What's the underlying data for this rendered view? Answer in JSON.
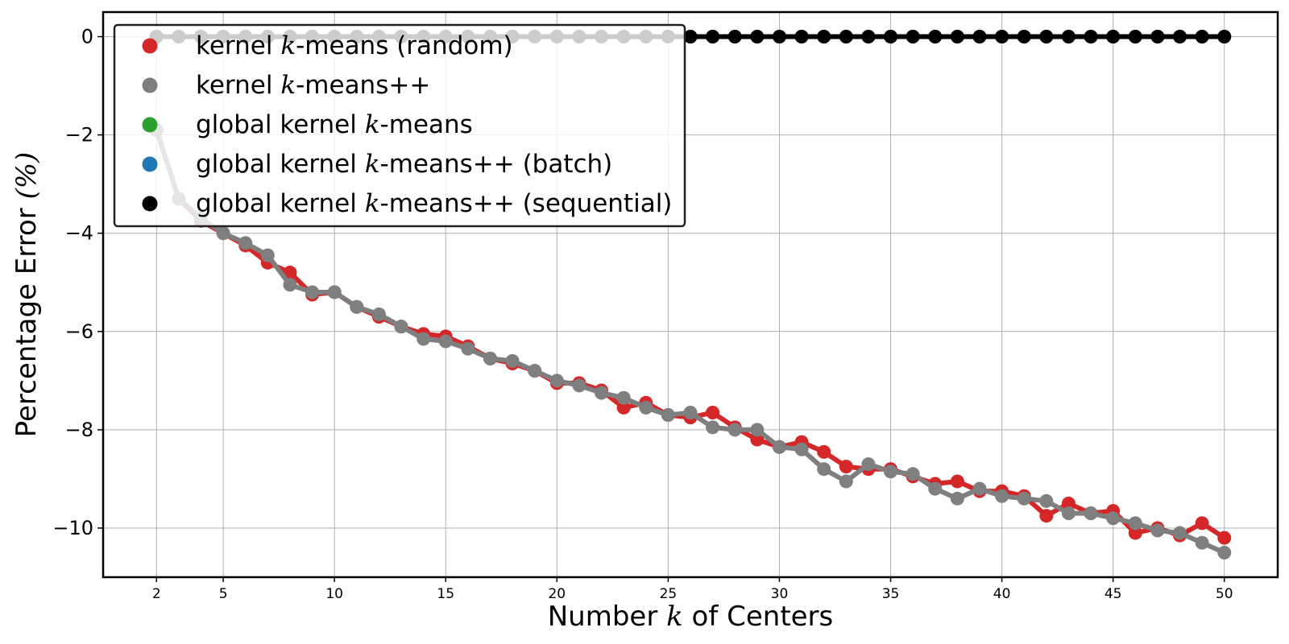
{
  "chart_data": {
    "type": "line",
    "title": "",
    "xlabel": {
      "pre": "Number ",
      "var": "k",
      "post": " of Centers"
    },
    "ylabel": {
      "pre": "Percentage Error ",
      "var": "(%)"
    },
    "xlim": [
      -0.4,
      52.4
    ],
    "ylim": [
      -11.0,
      0.5
    ],
    "xticks": [
      2,
      5,
      10,
      15,
      20,
      25,
      30,
      35,
      40,
      45,
      50
    ],
    "yticks": [
      0,
      -2,
      -4,
      -6,
      -8,
      -10
    ],
    "ytick_labels": [
      "0",
      "−2",
      "−4",
      "−6",
      "−8",
      "−10"
    ],
    "grid": true,
    "legend_position": "top-left",
    "x": [
      2,
      3,
      4,
      5,
      6,
      7,
      8,
      9,
      10,
      11,
      12,
      13,
      14,
      15,
      16,
      17,
      18,
      19,
      20,
      21,
      22,
      23,
      24,
      25,
      26,
      27,
      28,
      29,
      30,
      31,
      32,
      33,
      34,
      35,
      36,
      37,
      38,
      39,
      40,
      41,
      42,
      43,
      44,
      45,
      46,
      47,
      48,
      49,
      50
    ],
    "series": [
      {
        "name": "kernel k-means (random)",
        "legend": {
          "pre": "kernel ",
          "var": "k",
          "post": "-means (random)"
        },
        "color": "#d62728",
        "values": [
          -1.9,
          -3.3,
          -3.75,
          -4.0,
          -4.25,
          -4.6,
          -4.8,
          -5.25,
          -5.2,
          -5.5,
          -5.7,
          -5.9,
          -6.05,
          -6.1,
          -6.3,
          -6.55,
          -6.65,
          -6.8,
          -7.05,
          -7.05,
          -7.2,
          -7.55,
          -7.45,
          -7.7,
          -7.75,
          -7.65,
          -7.95,
          -8.2,
          -8.35,
          -8.25,
          -8.45,
          -8.75,
          -8.8,
          -8.8,
          -8.95,
          -9.1,
          -9.05,
          -9.25,
          -9.25,
          -9.35,
          -9.75,
          -9.5,
          -9.7,
          -9.65,
          -10.1,
          -10.0,
          -10.15,
          -9.9,
          -10.2
        ]
      },
      {
        "name": "kernel k-means++",
        "legend": {
          "pre": "kernel ",
          "var": "k",
          "post": "-means++"
        },
        "color": "#7f7f7f",
        "values": [
          -1.9,
          -3.3,
          -3.7,
          -4.0,
          -4.2,
          -4.45,
          -5.05,
          -5.2,
          -5.2,
          -5.5,
          -5.65,
          -5.9,
          -6.15,
          -6.2,
          -6.35,
          -6.55,
          -6.6,
          -6.8,
          -7.0,
          -7.1,
          -7.25,
          -7.35,
          -7.55,
          -7.7,
          -7.65,
          -7.95,
          -8.0,
          -8.0,
          -8.35,
          -8.4,
          -8.8,
          -9.05,
          -8.7,
          -8.85,
          -8.9,
          -9.2,
          -9.4,
          -9.2,
          -9.35,
          -9.4,
          -9.45,
          -9.7,
          -9.7,
          -9.8,
          -9.9,
          -10.05,
          -10.1,
          -10.3,
          -10.5
        ]
      },
      {
        "name": "global kernel k-means",
        "legend": {
          "pre": "global kernel ",
          "var": "k",
          "post": "-means"
        },
        "color": "#2ca02c",
        "values": [
          0,
          0,
          0,
          0,
          0,
          0,
          0,
          0,
          0,
          0,
          0,
          0,
          0,
          0,
          0,
          0,
          0,
          0,
          0,
          0,
          0,
          0,
          0,
          0,
          0,
          0,
          0,
          0,
          0,
          0,
          0,
          0,
          0,
          0,
          0,
          0,
          0,
          0,
          0,
          0,
          0,
          0,
          0,
          0,
          0,
          0,
          0,
          0,
          0
        ]
      },
      {
        "name": "global kernel k-means++ (batch)",
        "legend": {
          "pre": "global kernel ",
          "var": "k",
          "post": "-means++ (batch)"
        },
        "color": "#1f77b4",
        "values": [
          0,
          0,
          0,
          0,
          0,
          0,
          0,
          0,
          0,
          0,
          0,
          0,
          0,
          0,
          0,
          0,
          0,
          0,
          0,
          0,
          0,
          0,
          0,
          0,
          0,
          0,
          0,
          0,
          0,
          0,
          0,
          0,
          0,
          0,
          0,
          0,
          0,
          0,
          0,
          0,
          0,
          0,
          0,
          0,
          0,
          0,
          0,
          0,
          0
        ]
      },
      {
        "name": "global kernel k-means++ (sequential)",
        "legend": {
          "pre": "global kernel ",
          "var": "k",
          "post": "-means++ (sequential)"
        },
        "color": "#000000",
        "values": [
          0,
          0,
          0,
          0,
          0,
          0,
          0,
          0,
          0,
          0,
          0,
          0,
          0,
          0,
          0,
          0,
          0,
          0,
          0,
          0,
          0,
          0,
          0,
          0,
          0,
          0,
          0,
          0,
          0,
          0,
          0,
          0,
          0,
          0,
          0,
          0,
          0,
          0,
          0,
          0,
          0,
          0,
          0,
          0,
          0,
          0,
          0,
          0,
          0
        ]
      }
    ]
  }
}
